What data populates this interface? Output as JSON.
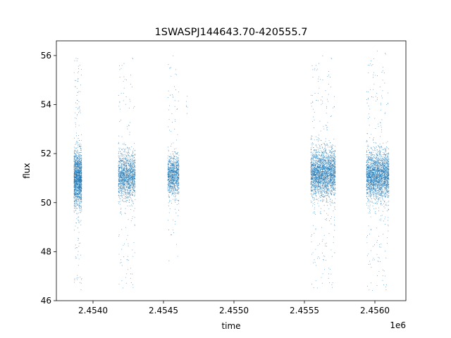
{
  "chart_data": {
    "type": "scatter",
    "title": "1SWASPJ144643.70-420555.7",
    "xlabel": "time",
    "ylabel": "flux",
    "x_offset_label": "1e6",
    "xlim": [
      2453740,
      2456220
    ],
    "ylim": [
      46.0,
      56.6
    ],
    "x_ticks": [
      2454000,
      2454500,
      2455000,
      2455500,
      2456000
    ],
    "x_tick_labels": [
      "2.4540",
      "2.4545",
      "2.4550",
      "2.4555",
      "2.4560"
    ],
    "y_ticks": [
      46,
      48,
      50,
      52,
      54,
      56
    ],
    "y_tick_labels": [
      "46",
      "48",
      "50",
      "52",
      "54",
      "56"
    ],
    "grid": false,
    "marker_color": "#1f77b4",
    "segments": [
      {
        "x_start": 2453865,
        "x_end": 2453920,
        "y_center": 51.0,
        "y_core_half_width": 1.0,
        "y_min": 46.4,
        "y_max": 56.2,
        "points": 1700
      },
      {
        "x_start": 2454180,
        "x_end": 2454300,
        "y_center": 51.1,
        "y_core_half_width": 0.85,
        "y_min": 46.5,
        "y_max": 56.0,
        "points": 1600
      },
      {
        "x_start": 2454530,
        "x_end": 2454610,
        "y_center": 51.1,
        "y_core_half_width": 0.75,
        "y_min": 47.6,
        "y_max": 56.0,
        "points": 1100
      },
      {
        "x_start": 2454660,
        "x_end": 2454675,
        "y_center": 54.1,
        "y_core_half_width": 0.4,
        "y_min": 53.6,
        "y_max": 54.4,
        "points": 6
      },
      {
        "x_start": 2455545,
        "x_end": 2455720,
        "y_center": 51.2,
        "y_core_half_width": 0.9,
        "y_min": 46.5,
        "y_max": 56.0,
        "points": 2700
      },
      {
        "x_start": 2455940,
        "x_end": 2456100,
        "y_center": 51.1,
        "y_core_half_width": 0.9,
        "y_min": 46.4,
        "y_max": 56.2,
        "points": 2600
      }
    ]
  }
}
